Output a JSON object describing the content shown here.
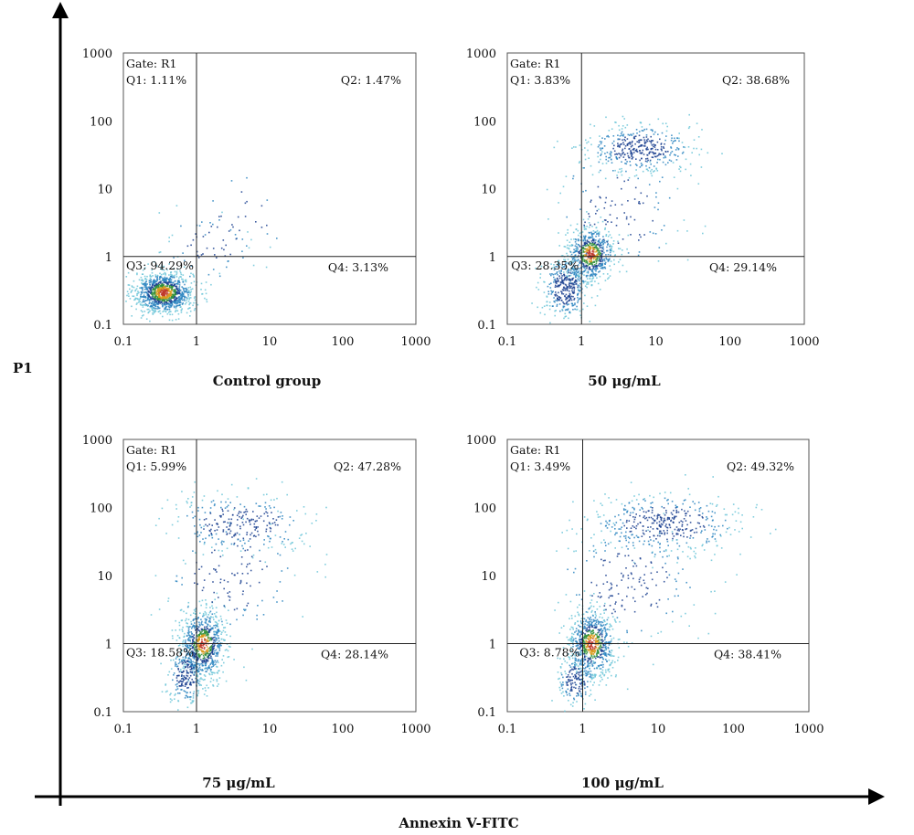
{
  "chart_data": {
    "type": "scatter",
    "x_axis_label": "Annexin V-FITC",
    "y_axis_label": "P1",
    "x_scale": "log",
    "y_scale": "log",
    "xlim": [
      0.1,
      1000
    ],
    "ylim": [
      0.1,
      1000
    ],
    "x_ticks": [
      "0.1",
      "1",
      "10",
      "100",
      "1000"
    ],
    "y_ticks": [
      "0.1",
      "1",
      "10",
      "100",
      "1000"
    ],
    "gate_x": 1,
    "gate_y": 1,
    "density_colors": [
      "#6cc6d8",
      "#2e86c1",
      "#1a3f8f",
      "#2f8f3a",
      "#d89a1c",
      "#c0392b"
    ],
    "panels": [
      {
        "title": "Control group",
        "gate": "Gate: R1",
        "q1": "Q1: 1.11%",
        "q2": "Q2: 1.47%",
        "q3": "Q3: 94.29%",
        "q4": "Q4: 3.13%",
        "clusters": [
          {
            "x": 0.35,
            "y": 0.3,
            "sx": 0.2,
            "sy": 0.15,
            "n": 1100
          },
          {
            "x": 1.4,
            "y": 1.4,
            "sx": 0.3,
            "sy": 0.3,
            "n": 60
          },
          {
            "x": 4,
            "y": 4,
            "sx": 0.35,
            "sy": 0.35,
            "n": 30
          }
        ]
      },
      {
        "title": "50 μg/mL",
        "gate": "Gate: R1",
        "q1": "Q1: 3.83%",
        "q2": "Q2: 38.68%",
        "q3": "Q3: 28.35%",
        "q4": "Q4: 29.14%",
        "clusters": [
          {
            "x": 1.3,
            "y": 1.1,
            "sx": 0.16,
            "sy": 0.2,
            "n": 650
          },
          {
            "x": 0.6,
            "y": 0.35,
            "sx": 0.15,
            "sy": 0.22,
            "n": 380
          },
          {
            "x": 6,
            "y": 40,
            "sx": 0.35,
            "sy": 0.18,
            "n": 420
          },
          {
            "x": 3,
            "y": 5,
            "sx": 0.45,
            "sy": 0.5,
            "n": 120
          }
        ]
      },
      {
        "title": "75 μg/mL",
        "gate": "Gate: R1",
        "q1": "Q1: 5.99%",
        "q2": "Q2: 47.28%",
        "q3": "Q3: 18.58%",
        "q4": "Q4: 28.14%",
        "clusters": [
          {
            "x": 1.2,
            "y": 1.0,
            "sx": 0.15,
            "sy": 0.25,
            "n": 800
          },
          {
            "x": 0.7,
            "y": 0.35,
            "sx": 0.12,
            "sy": 0.2,
            "n": 220
          },
          {
            "x": 4,
            "y": 60,
            "sx": 0.5,
            "sy": 0.22,
            "n": 280
          },
          {
            "x": 3,
            "y": 10,
            "sx": 0.5,
            "sy": 0.45,
            "n": 140
          }
        ]
      },
      {
        "title": "100 μg/mL",
        "gate": "Gate: R1",
        "q1": "Q1: 3.49%",
        "q2": "Q2: 49.32%",
        "q3": "Q3: 8.78%",
        "q4": "Q4: 38.41%",
        "clusters": [
          {
            "x": 1.3,
            "y": 1.0,
            "sx": 0.15,
            "sy": 0.25,
            "n": 750
          },
          {
            "x": 0.8,
            "y": 0.3,
            "sx": 0.12,
            "sy": 0.18,
            "n": 180
          },
          {
            "x": 12,
            "y": 60,
            "sx": 0.5,
            "sy": 0.22,
            "n": 420
          },
          {
            "x": 4,
            "y": 8,
            "sx": 0.5,
            "sy": 0.45,
            "n": 200
          }
        ]
      }
    ]
  }
}
